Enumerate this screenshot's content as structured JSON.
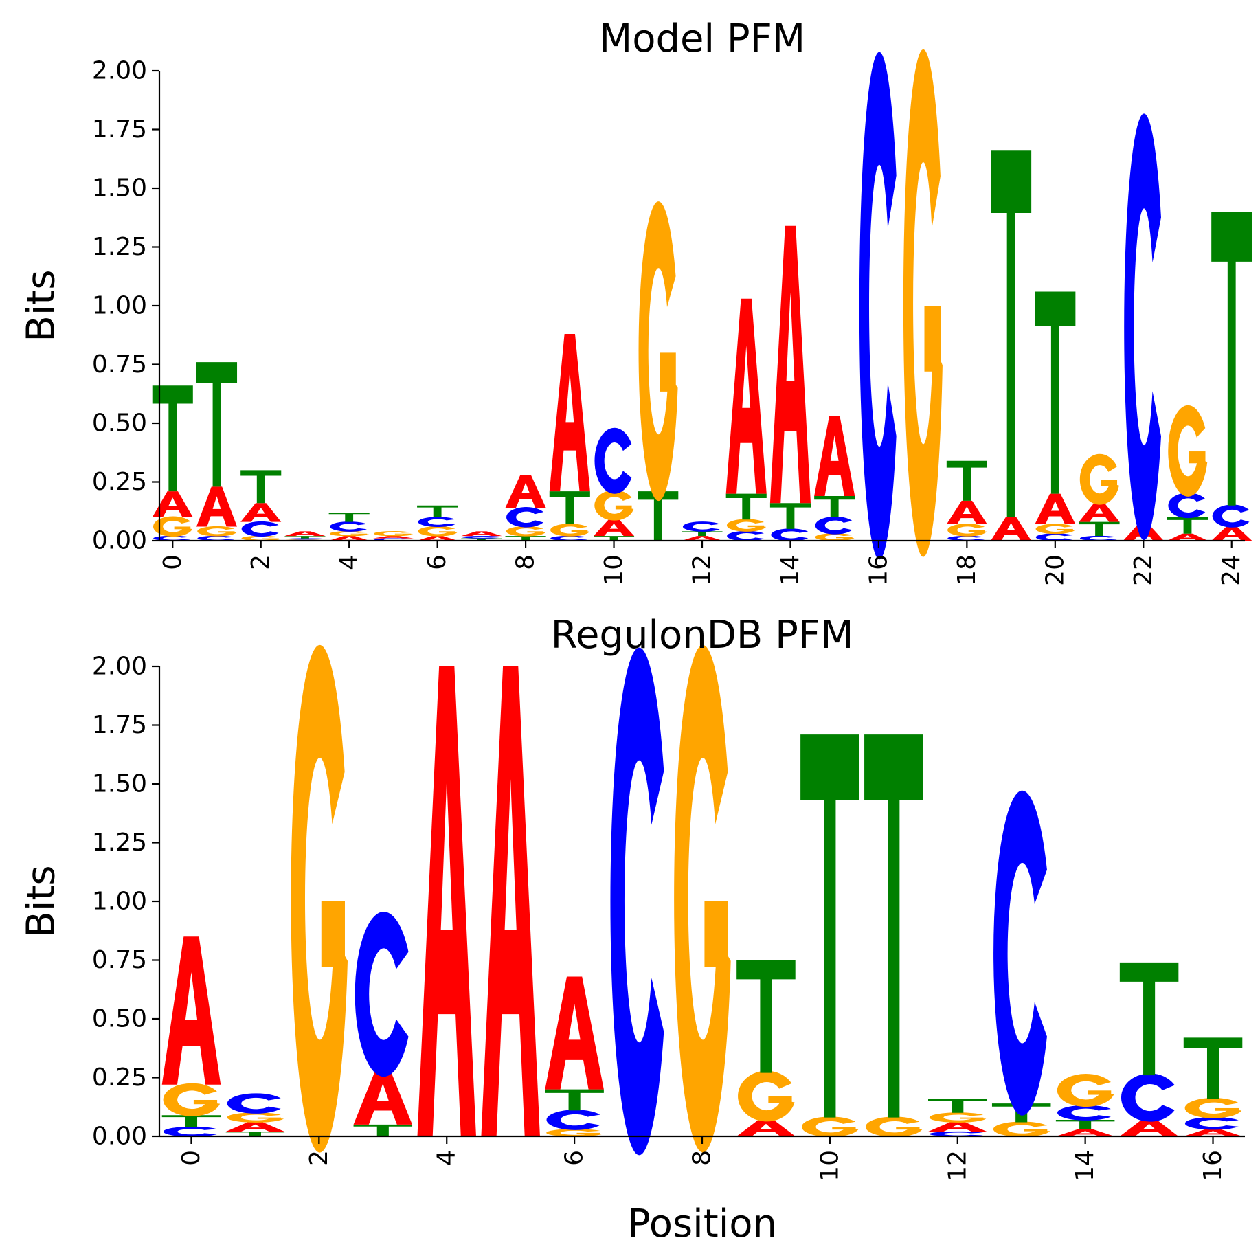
{
  "chart_data": [
    {
      "type": "sequence-logo",
      "title": "Model PFM",
      "xlabel": "",
      "ylabel": "Bits",
      "ylim": [
        0,
        2
      ],
      "yticks": [
        "0.00",
        "0.25",
        "0.50",
        "0.75",
        "1.00",
        "1.25",
        "1.50",
        "1.75",
        "2.00"
      ],
      "xlim": [
        -0.3,
        24.3
      ],
      "xticks": [
        "0",
        "2",
        "4",
        "6",
        "8",
        "10",
        "12",
        "14",
        "16",
        "18",
        "20",
        "22",
        "24"
      ],
      "positions": [
        [
          [
            "C",
            0.02
          ],
          [
            "G",
            0.08
          ],
          [
            "A",
            0.11
          ],
          [
            "T",
            0.45
          ]
        ],
        [
          [
            "C",
            0.02
          ],
          [
            "G",
            0.04
          ],
          [
            "A",
            0.17
          ],
          [
            "T",
            0.53
          ]
        ],
        [
          [
            "G",
            0.02
          ],
          [
            "C",
            0.06
          ],
          [
            "A",
            0.08
          ],
          [
            "T",
            0.14
          ]
        ],
        [
          [
            "G",
            0.005
          ],
          [
            "C",
            0.005
          ],
          [
            "T",
            0.01
          ],
          [
            "A",
            0.02
          ]
        ],
        [
          [
            "A",
            0.02
          ],
          [
            "G",
            0.02
          ],
          [
            "C",
            0.04
          ],
          [
            "T",
            0.04
          ]
        ],
        [
          [
            "C",
            0.01
          ],
          [
            "A",
            0.01
          ],
          [
            "G",
            0.02
          ]
        ],
        [
          [
            "A",
            0.02
          ],
          [
            "G",
            0.04
          ],
          [
            "C",
            0.04
          ],
          [
            "T",
            0.05
          ]
        ],
        [
          [
            "T",
            0.01
          ],
          [
            "C",
            0.01
          ],
          [
            "A",
            0.02
          ]
        ],
        [
          [
            "T",
            0.02
          ],
          [
            "G",
            0.04
          ],
          [
            "C",
            0.08
          ],
          [
            "A",
            0.14
          ]
        ],
        [
          [
            "C",
            0.02
          ],
          [
            "G",
            0.05
          ],
          [
            "T",
            0.14
          ],
          [
            "A",
            0.67
          ]
        ],
        [
          [
            "T",
            0.02
          ],
          [
            "A",
            0.07
          ],
          [
            "G",
            0.12
          ],
          [
            "C",
            0.26
          ]
        ],
        [
          [
            "T",
            0.21
          ],
          [
            "G",
            1.18
          ]
        ],
        [
          [
            "A",
            0.02
          ],
          [
            "T",
            0.02
          ],
          [
            "C",
            0.04
          ]
        ],
        [
          [
            "C",
            0.04
          ],
          [
            "G",
            0.05
          ],
          [
            "T",
            0.11
          ],
          [
            "A",
            0.83
          ]
        ],
        [
          [
            "C",
            0.05
          ],
          [
            "T",
            0.11
          ],
          [
            "A",
            1.18
          ]
        ],
        [
          [
            "G",
            0.03
          ],
          [
            "C",
            0.07
          ],
          [
            "T",
            0.09
          ],
          [
            "A",
            0.34
          ]
        ],
        [
          [
            "C",
            2.0
          ]
        ],
        [
          [
            "G",
            2.0
          ]
        ],
        [
          [
            "C",
            0.02
          ],
          [
            "G",
            0.05
          ],
          [
            "A",
            0.1
          ],
          [
            "T",
            0.17
          ]
        ],
        [
          [
            "A",
            0.1
          ],
          [
            "T",
            1.56
          ]
        ],
        [
          [
            "C",
            0.03
          ],
          [
            "G",
            0.04
          ],
          [
            "A",
            0.13
          ],
          [
            "T",
            0.86
          ]
        ],
        [
          [
            "C",
            0.02
          ],
          [
            "T",
            0.06
          ],
          [
            "A",
            0.08
          ],
          [
            "G",
            0.2
          ]
        ],
        [
          [
            "A",
            0.07
          ],
          [
            "C",
            1.68
          ]
        ],
        [
          [
            "A",
            0.03
          ],
          [
            "T",
            0.07
          ],
          [
            "C",
            0.1
          ],
          [
            "G",
            0.36
          ]
        ],
        [
          [
            "A",
            0.06
          ],
          [
            "C",
            0.09
          ],
          [
            "T",
            1.25
          ]
        ]
      ]
    },
    {
      "type": "sequence-logo",
      "title": "RegulonDB PFM",
      "xlabel": "Position",
      "ylabel": "Bits",
      "ylim": [
        0,
        2
      ],
      "yticks": [
        "0.00",
        "0.25",
        "0.50",
        "0.75",
        "1.00",
        "1.25",
        "1.50",
        "1.75",
        "2.00"
      ],
      "xlim": [
        -0.5,
        16.5
      ],
      "xticks": [
        "0",
        "2",
        "4",
        "6",
        "8",
        "10",
        "12",
        "14",
        "16"
      ],
      "positions": [
        [
          [
            "C",
            0.04
          ],
          [
            "T",
            0.05
          ],
          [
            "G",
            0.13
          ],
          [
            "A",
            0.63
          ]
        ],
        [
          [
            "T",
            0.02
          ],
          [
            "A",
            0.04
          ],
          [
            "G",
            0.04
          ],
          [
            "C",
            0.08
          ]
        ],
        [
          [
            "G",
            2.0
          ]
        ],
        [
          [
            "T",
            0.05
          ],
          [
            "A",
            0.23
          ],
          [
            "C",
            0.65
          ]
        ],
        [
          [
            "A",
            2.0
          ]
        ],
        [
          [
            "A",
            2.0
          ]
        ],
        [
          [
            "G",
            0.03
          ],
          [
            "C",
            0.08
          ],
          [
            "T",
            0.09
          ],
          [
            "A",
            0.48
          ]
        ],
        [
          [
            "C",
            2.0
          ]
        ],
        [
          [
            "G",
            2.0
          ]
        ],
        [
          [
            "A",
            0.07
          ],
          [
            "G",
            0.2
          ],
          [
            "T",
            0.48
          ]
        ],
        [
          [
            "G",
            0.08
          ],
          [
            "T",
            1.63
          ]
        ],
        [
          [
            "G",
            0.08
          ],
          [
            "T",
            1.63
          ]
        ],
        [
          [
            "C",
            0.02
          ],
          [
            "A",
            0.04
          ],
          [
            "G",
            0.04
          ],
          [
            "T",
            0.06
          ]
        ],
        [
          [
            "G",
            0.06
          ],
          [
            "T",
            0.08
          ],
          [
            "C",
            1.28
          ]
        ],
        [
          [
            "A",
            0.03
          ],
          [
            "T",
            0.04
          ],
          [
            "C",
            0.06
          ],
          [
            "G",
            0.13
          ]
        ],
        [
          [
            "A",
            0.07
          ],
          [
            "C",
            0.19
          ],
          [
            "T",
            0.48
          ]
        ],
        [
          [
            "A",
            0.03
          ],
          [
            "C",
            0.05
          ],
          [
            "G",
            0.08
          ],
          [
            "T",
            0.26
          ]
        ]
      ]
    }
  ],
  "colors": {
    "A": "#ff0000",
    "C": "#0000ff",
    "G": "#ffa500",
    "T": "#008000"
  }
}
